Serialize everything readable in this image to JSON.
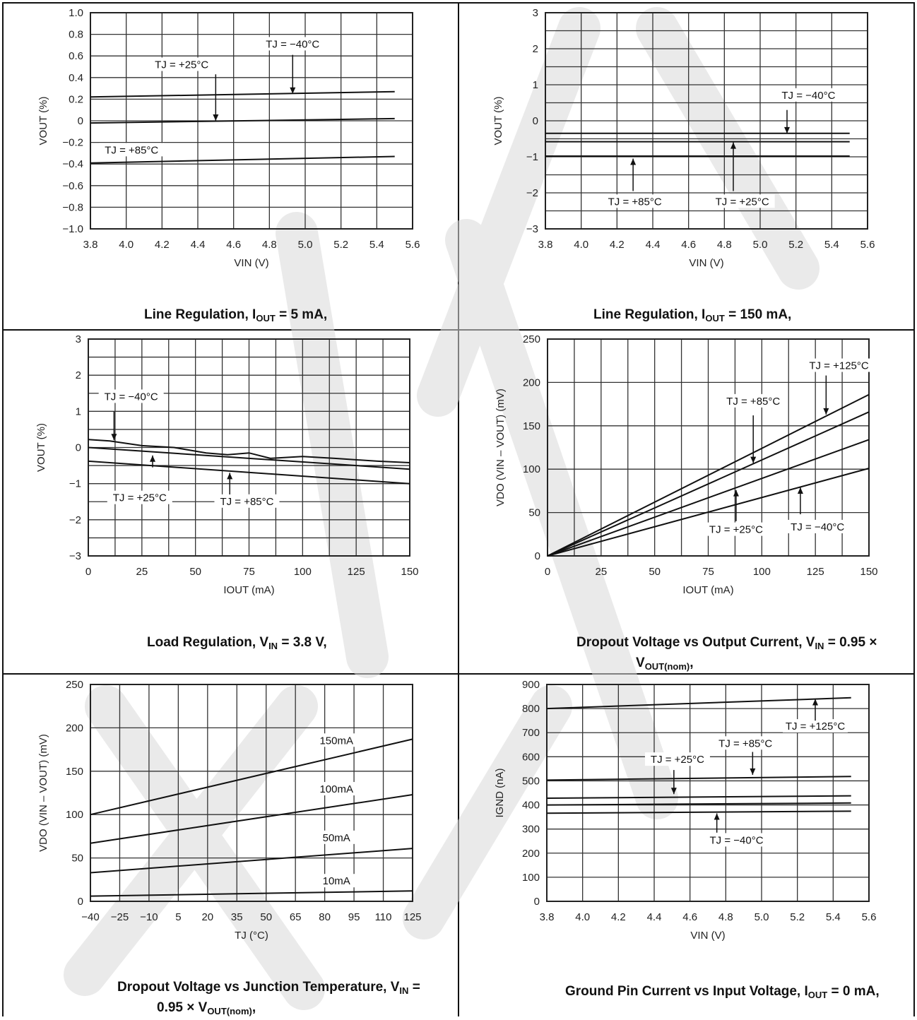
{
  "charts": [
    {
      "id": "line-reg-5ma",
      "caption": "Line Regulation, IOUT = 5 mA,",
      "caption_html": [
        "Line Regulation, I",
        "OUT",
        " = 5 mA,"
      ],
      "chart_data": {
        "type": "line",
        "xlabel": "VIN (V)",
        "ylabel": "VOUT (%)",
        "xlim": [
          3.8,
          5.6
        ],
        "ylim": [
          -1.0,
          1.0
        ],
        "xticks": [
          "3.8",
          "4.0",
          "4.2",
          "4.4",
          "4.6",
          "4.8",
          "5.0",
          "5.2",
          "5.4",
          "5.6"
        ],
        "yticks": [
          "1.0",
          "0.8",
          "0.6",
          "0.4",
          "0.2",
          "0",
          "-0.2",
          "-0.4",
          "-0.6",
          "-0.8",
          "-1.0"
        ],
        "grid": true,
        "series": [
          {
            "name": "TJ = -40°C",
            "x": [
              3.8,
              5.5
            ],
            "y": [
              0.22,
              0.27
            ]
          },
          {
            "name": "TJ = +25°C",
            "x": [
              3.8,
              5.5
            ],
            "y": [
              -0.02,
              0.02
            ]
          },
          {
            "name": "TJ = +85°C",
            "x": [
              3.8,
              5.5
            ],
            "y": [
              -0.39,
              -0.33
            ]
          }
        ],
        "annotations": [
          {
            "text": "TJ = -40°C",
            "tx": 4.93,
            "ty": 0.69,
            "ax": 4.93,
            "ay1": 0.61,
            "ay2": 0.25
          },
          {
            "text": "TJ = +25°C",
            "tx": 4.31,
            "ty": 0.5,
            "ax": 4.5,
            "ay1": 0.43,
            "ay2": 0.0
          },
          {
            "text": "TJ = +85°C",
            "tx": 4.03,
            "ty": -0.29,
            "ax": null
          }
        ]
      }
    },
    {
      "id": "line-reg-150ma",
      "caption": "Line Regulation, IOUT = 150 mA,",
      "caption_html": [
        "Line Regulation, I",
        "OUT",
        " = 150 mA,"
      ],
      "chart_data": {
        "type": "line",
        "xlabel": "VIN (V)",
        "ylabel": "VOUT (%)",
        "xlim": [
          3.8,
          5.6
        ],
        "ylim": [
          -3,
          3
        ],
        "xticks": [
          "3.8",
          "4.0",
          "4.2",
          "4.4",
          "4.6",
          "4.8",
          "5.0",
          "5.2",
          "5.4",
          "5.6"
        ],
        "yticks": [
          "3",
          "2",
          "1",
          "0",
          "-1",
          "-2",
          "-3"
        ],
        "grid": true,
        "series": [
          {
            "name": "TJ = -40°C",
            "x": [
              3.8,
              5.5
            ],
            "y": [
              -0.35,
              -0.35
            ]
          },
          {
            "name": "TJ = +25°C",
            "x": [
              3.8,
              5.5
            ],
            "y": [
              -0.58,
              -0.58
            ]
          },
          {
            "name": "TJ = +85°C",
            "x": [
              3.8,
              5.5
            ],
            "y": [
              -0.98,
              -0.98
            ]
          }
        ],
        "annotations": [
          {
            "text": "TJ = -40°C",
            "tx": 5.27,
            "ty": 0.65,
            "ax": 5.15,
            "ay1": 0.3,
            "ay2": -0.35
          },
          {
            "text": "TJ = +25°C",
            "tx": 4.9,
            "ty": -2.3,
            "ax": 4.85,
            "ay1": -1.95,
            "ay2": -0.6
          },
          {
            "text": "TJ = +85°C",
            "tx": 4.3,
            "ty": -2.3,
            "ax": 4.29,
            "ay1": -1.95,
            "ay2": -1.05
          }
        ]
      }
    },
    {
      "id": "load-reg",
      "caption": "Load Regulation, VIN = 3.8 V,",
      "caption_html": [
        "Load Regulation, V",
        "IN",
        " = 3.8 V,"
      ],
      "chart_data": {
        "type": "line",
        "xlabel": "IOUT (mA)",
        "ylabel": "VOUT (%)",
        "xlim": [
          0,
          150
        ],
        "ylim": [
          -3,
          3
        ],
        "xticks": [
          "0",
          "25",
          "50",
          "75",
          "100",
          "125",
          "150"
        ],
        "yticks": [
          "3",
          "2",
          "1",
          "0",
          "-1",
          "-2",
          "-3"
        ],
        "grid": true,
        "series": [
          {
            "name": "TJ = -40°C",
            "x": [
              0,
              10,
              25,
              40,
              55,
              65,
              75,
              85,
              100,
              115,
              135,
              150
            ],
            "y": [
              0.22,
              0.18,
              0.05,
              0.0,
              -0.15,
              -0.2,
              -0.15,
              -0.3,
              -0.25,
              -0.3,
              -0.38,
              -0.42
            ]
          },
          {
            "name": "TJ = +25°C",
            "x": [
              0,
              150
            ],
            "y": [
              0.0,
              -0.6
            ]
          },
          {
            "name": "TJ = +85°C",
            "x": [
              0,
              150
            ],
            "y": [
              -0.38,
              -1.0
            ]
          }
        ],
        "annotations": [
          {
            "text": "TJ = -40°C",
            "tx": 20,
            "ty": 1.35,
            "ax": 12,
            "ay1": 1.0,
            "ay2": 0.2
          },
          {
            "text": "TJ = +25°C",
            "tx": 24,
            "ty": -1.45,
            "ax": 30,
            "ay1": -0.55,
            "ay2": -0.22
          },
          {
            "text": "TJ = +85°C",
            "tx": 74,
            "ty": -1.55,
            "ax": 66,
            "ay1": -1.3,
            "ay2": -0.7
          }
        ]
      }
    },
    {
      "id": "dropout-vs-iout",
      "caption": "Dropout Voltage vs Output Current, VIN = 0.95 × VOUT(nom),",
      "caption_html": [
        "Dropout Voltage vs Output Current, V",
        "IN",
        " = 0.95 × V",
        "OUT(nom)",
        ","
      ],
      "chart_data": {
        "type": "line",
        "xlabel": "IOUT (mA)",
        "ylabel": "VDO (VIN – VOUT) (mV)",
        "xlim": [
          0,
          150
        ],
        "ylim": [
          0,
          250
        ],
        "xticks": [
          "0",
          "25",
          "50",
          "75",
          "100",
          "125",
          "150"
        ],
        "yticks": [
          "250",
          "200",
          "150",
          "100",
          "50",
          "0"
        ],
        "grid": true,
        "series": [
          {
            "name": "TJ = +125°C",
            "x": [
              0,
              150
            ],
            "y": [
              0,
              186
            ]
          },
          {
            "name": "TJ = +85°C",
            "x": [
              0,
              150
            ],
            "y": [
              0,
              166
            ]
          },
          {
            "name": "TJ = +25°C",
            "x": [
              0,
              150
            ],
            "y": [
              0,
              134
            ]
          },
          {
            "name": "TJ = -40°C",
            "x": [
              0,
              150
            ],
            "y": [
              0,
              101
            ]
          }
        ],
        "annotations": [
          {
            "text": "TJ = +125°C",
            "tx": 136,
            "ty": 217,
            "ax": 130,
            "ay1": 208,
            "ay2": 163
          },
          {
            "text": "TJ = +85°C",
            "tx": 96,
            "ty": 176,
            "ax": 96,
            "ay1": 162,
            "ay2": 107
          },
          {
            "text": "TJ = +25°C",
            "tx": 88,
            "ty": 28,
            "ax": 88,
            "ay1": 40,
            "ay2": 76
          },
          {
            "text": "TJ = -40°C",
            "tx": 126,
            "ty": 31,
            "ax": 118,
            "ay1": 48,
            "ay2": 79
          }
        ]
      }
    },
    {
      "id": "dropout-vs-tj",
      "caption": "Dropout Voltage vs Junction Temperature, VIN = 0.95 × VOUT(nom),",
      "caption_html": [
        "Dropout Voltage vs Junction Temperature, V",
        "IN",
        " =",
        "0.95 × V",
        "OUT(nom)",
        ","
      ],
      "chart_data": {
        "type": "line",
        "xlabel": "TJ (°C)",
        "ylabel": "VDO (VIN – VOUT) (mV)",
        "xlim": [
          -40,
          125
        ],
        "ylim": [
          0,
          250
        ],
        "xticks": [
          "-40",
          "-25",
          "-10",
          "5",
          "20",
          "35",
          "50",
          "65",
          "80",
          "95",
          "110",
          "125"
        ],
        "yticks": [
          "250",
          "200",
          "150",
          "100",
          "50",
          "0"
        ],
        "grid": true,
        "series": [
          {
            "name": "150mA",
            "x": [
              -40,
              125
            ],
            "y": [
              100,
              187
            ]
          },
          {
            "name": "100mA",
            "x": [
              -40,
              125
            ],
            "y": [
              67,
              123
            ]
          },
          {
            "name": "50mA",
            "x": [
              -40,
              125
            ],
            "y": [
              33,
              61
            ]
          },
          {
            "name": "10mA",
            "x": [
              -40,
              125
            ],
            "y": [
              6,
              12
            ]
          }
        ],
        "annotations": [
          {
            "text": "150mA",
            "tx": 86,
            "ty": 183
          },
          {
            "text": "100mA",
            "tx": 86,
            "ty": 127
          },
          {
            "text": "50mA",
            "tx": 86,
            "ty": 71
          },
          {
            "text": "10mA",
            "tx": 86,
            "ty": 21
          }
        ]
      }
    },
    {
      "id": "ignd-vs-vin",
      "caption": "Ground Pin Current vs Input Voltage, IOUT = 0 mA,",
      "caption_html": [
        "Ground Pin Current vs Input Voltage, I",
        "OUT",
        " = 0 mA,"
      ],
      "chart_data": {
        "type": "line",
        "xlabel": "VIN (V)",
        "ylabel": "IGND (nA)",
        "xlim": [
          3.8,
          5.6
        ],
        "ylim": [
          0,
          900
        ],
        "xticks": [
          "3.8",
          "4.0",
          "4.2",
          "4.4",
          "4.6",
          "4.8",
          "5.0",
          "5.2",
          "5.4",
          "5.6"
        ],
        "yticks": [
          "900",
          "800",
          "700",
          "600",
          "500",
          "400",
          "300",
          "200",
          "100",
          "0"
        ],
        "grid": true,
        "series": [
          {
            "name": "TJ = +125°C",
            "x": [
              3.8,
              5.5
            ],
            "y": [
              800,
              845
            ]
          },
          {
            "name": "TJ = +85°C",
            "x": [
              3.8,
              5.5
            ],
            "y": [
              503,
              518
            ]
          },
          {
            "name": "TJ = +25°C",
            "x": [
              3.8,
              5.5
            ],
            "y": [
              428,
              438
            ]
          },
          {
            "name": "TJ = -40°C",
            "x": [
              3.8,
              5.5
            ],
            "y": [
              400,
              408
            ]
          },
          {
            "name": "",
            "x": [
              3.8,
              5.5
            ],
            "y": [
              366,
              374
            ]
          }
        ],
        "annotations": [
          {
            "text": "TJ = +125°C",
            "tx": 5.3,
            "ty": 718,
            "ax": 5.3,
            "ay1": 750,
            "ay2": 840
          },
          {
            "text": "TJ = +85°C",
            "tx": 4.91,
            "ty": 647,
            "ax": 4.95,
            "ay1": 620,
            "ay2": 525
          },
          {
            "text": "TJ = +25°C",
            "tx": 4.53,
            "ty": 580,
            "ax": 4.51,
            "ay1": 545,
            "ay2": 445
          },
          {
            "text": "TJ = -40°C",
            "tx": 4.86,
            "ty": 245,
            "ax": 4.75,
            "ay1": 285,
            "ay2": 365
          }
        ]
      }
    }
  ]
}
